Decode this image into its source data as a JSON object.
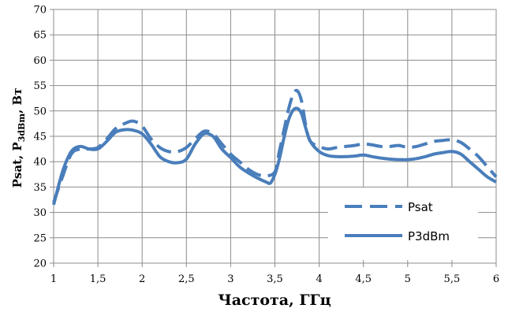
{
  "chart_data": {
    "type": "line",
    "xlabel": "Частота, ГГц",
    "ylabel": {
      "base": "Psat, P",
      "sub": "3dBm",
      "tail": ", Вт"
    },
    "xlim": [
      1,
      6
    ],
    "ylim": [
      20,
      70
    ],
    "x_ticks": [
      1,
      1.5,
      2,
      2.5,
      3,
      3.5,
      4,
      4.5,
      5,
      5.5,
      6
    ],
    "x_tick_labels": [
      "1",
      "1,5",
      "2",
      "2,5",
      "3",
      "3,5",
      "4",
      "4,5",
      "5",
      "5,5",
      "6"
    ],
    "y_ticks": [
      20,
      25,
      30,
      35,
      40,
      45,
      50,
      55,
      60,
      65,
      70
    ],
    "y_tick_labels": [
      "20",
      "25",
      "30",
      "35",
      "40",
      "45",
      "50",
      "55",
      "60",
      "65",
      "70"
    ],
    "grid": true,
    "legend_position": "bottom-right",
    "series": [
      {
        "name": "Psat",
        "style": "dashed",
        "color": "#4a7ebb",
        "x": [
          1.0,
          1.1,
          1.2,
          1.3,
          1.4,
          1.5,
          1.6,
          1.7,
          1.8,
          1.9,
          2.0,
          2.1,
          2.2,
          2.3,
          2.4,
          2.5,
          2.6,
          2.7,
          2.8,
          2.9,
          3.0,
          3.1,
          3.2,
          3.3,
          3.4,
          3.5,
          3.55,
          3.6,
          3.65,
          3.7,
          3.75,
          3.8,
          3.85,
          3.9,
          4.0,
          4.1,
          4.2,
          4.3,
          4.4,
          4.5,
          4.6,
          4.7,
          4.8,
          4.9,
          5.0,
          5.1,
          5.2,
          5.3,
          5.4,
          5.5,
          5.6,
          5.7,
          5.8,
          5.9,
          6.0
        ],
        "y": [
          32.0,
          37.0,
          41.5,
          42.5,
          42.5,
          42.8,
          44.5,
          46.5,
          47.5,
          48.0,
          47.0,
          44.5,
          42.8,
          42.0,
          42.0,
          42.8,
          44.5,
          46.0,
          45.5,
          43.5,
          41.5,
          40.0,
          38.5,
          37.5,
          37.2,
          38.0,
          42.0,
          46.0,
          50.0,
          53.0,
          54.0,
          52.0,
          47.0,
          44.0,
          43.0,
          42.5,
          42.8,
          43.0,
          43.2,
          43.5,
          43.3,
          43.0,
          43.0,
          43.2,
          42.8,
          43.0,
          43.5,
          44.0,
          44.2,
          44.3,
          43.8,
          42.5,
          41.0,
          39.0,
          37.0
        ]
      },
      {
        "name": "P3dBm",
        "style": "solid",
        "color": "#4a7ebb",
        "x": [
          1.0,
          1.1,
          1.2,
          1.3,
          1.4,
          1.5,
          1.6,
          1.7,
          1.8,
          1.9,
          2.0,
          2.1,
          2.2,
          2.3,
          2.4,
          2.5,
          2.6,
          2.7,
          2.8,
          2.9,
          3.0,
          3.1,
          3.2,
          3.3,
          3.4,
          3.45,
          3.5,
          3.55,
          3.6,
          3.65,
          3.7,
          3.75,
          3.8,
          3.85,
          3.9,
          4.0,
          4.1,
          4.2,
          4.3,
          4.4,
          4.5,
          4.6,
          4.7,
          4.8,
          4.9,
          5.0,
          5.1,
          5.2,
          5.3,
          5.4,
          5.5,
          5.6,
          5.7,
          5.8,
          5.9,
          6.0
        ],
        "y": [
          31.5,
          38.0,
          42.0,
          43.0,
          42.5,
          42.5,
          44.0,
          45.8,
          46.3,
          46.2,
          45.5,
          43.5,
          41.0,
          40.0,
          39.8,
          40.5,
          43.5,
          45.5,
          45.0,
          42.5,
          40.8,
          39.0,
          37.8,
          36.8,
          36.0,
          35.8,
          37.5,
          40.5,
          44.5,
          48.0,
          50.0,
          50.5,
          49.5,
          46.5,
          44.0,
          42.0,
          41.2,
          41.0,
          41.0,
          41.1,
          41.3,
          41.0,
          40.7,
          40.5,
          40.4,
          40.4,
          40.6,
          41.0,
          41.5,
          41.8,
          42.0,
          41.5,
          40.0,
          38.5,
          37.0,
          36.0
        ]
      }
    ]
  }
}
